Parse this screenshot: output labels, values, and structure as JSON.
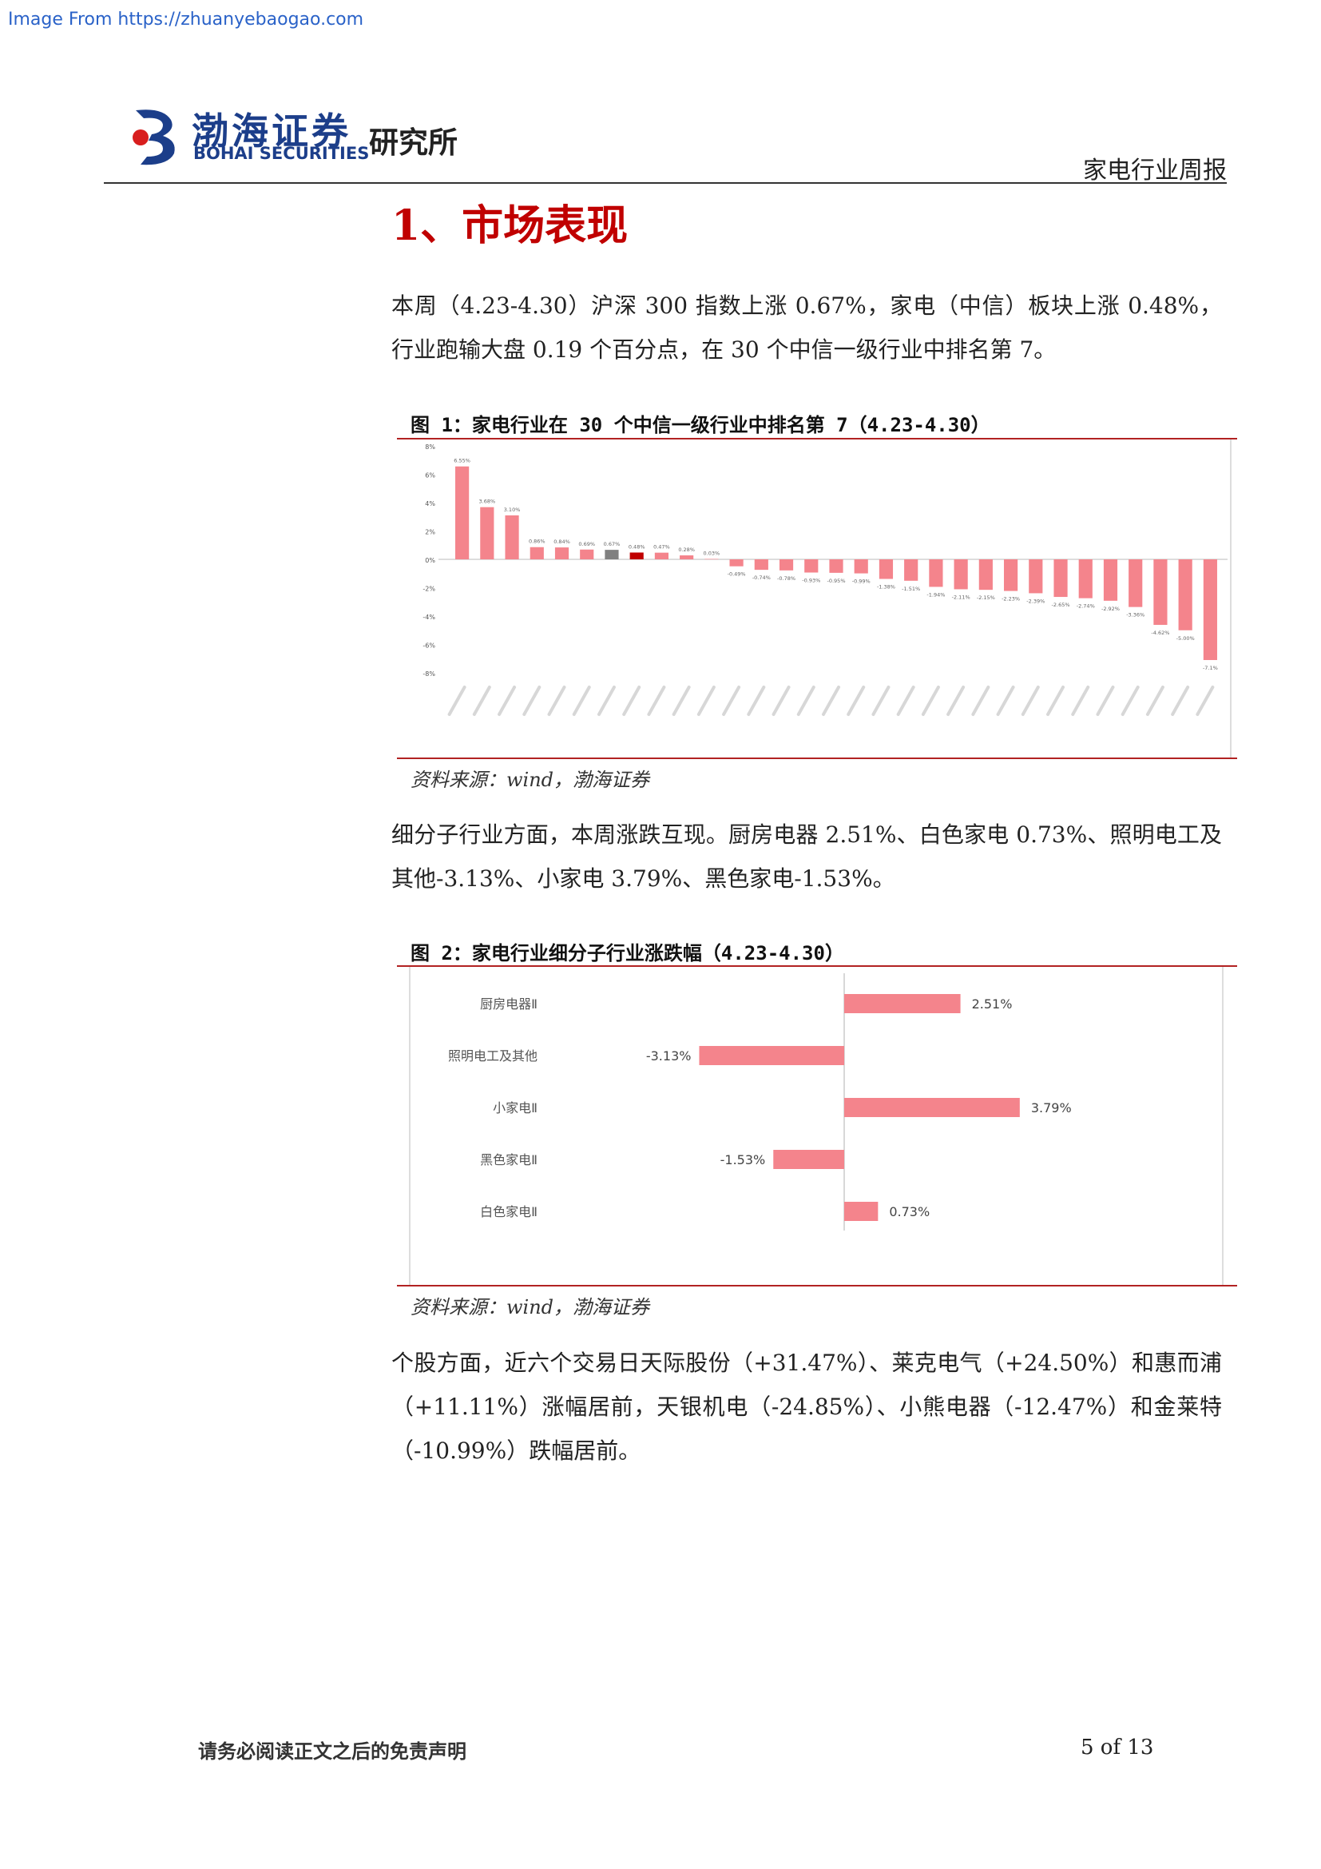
{
  "watermark": "Image From https://zhuanyebaogao.com",
  "header": {
    "logo_cn": "渤海证券",
    "logo_en": "BOHAI SECURITIES",
    "institute": "研究所",
    "report_type": "家电行业周报"
  },
  "section_title": "1、市场表现",
  "paragraphs": {
    "p1": "本周（4.23-4.30）沪深 300 指数上涨 0.67%，家电（中信）板块上涨 0.48%，行业跑输大盘 0.19 个百分点，在 30 个中信一级行业中排名第 7。",
    "p2": "细分子行业方面，本周涨跌互现。厨房电器 2.51%、白色家电 0.73%、照明电工及其他-3.13%、小家电 3.79%、黑色家电-1.53%。",
    "p3": "个股方面，近六个交易日天际股份（+31.47%）、莱克电气（+24.50%）和惠而浦（+11.11%）涨幅居前，天银机电（-24.85%）、小熊电器（-12.47%）和金莱特（-10.99%）跌幅居前。"
  },
  "figure1": {
    "title": "图 1：家电行业在 30 个中信一级行业中排名第 7（4.23-4.30）",
    "source": "资料来源：wind，渤海证券"
  },
  "figure2": {
    "title": "图 2：家电行业细分子行业涨跌幅（4.23-4.30）",
    "source": "资料来源：wind，渤海证券"
  },
  "footer": {
    "disclaimer": "请务必阅读正文之后的免责声明",
    "page": "5 of 13"
  },
  "colors": {
    "bar": "#f4848c",
    "highlight_home_appliance": "#c00000",
    "highlight_index": "#808080",
    "rule_red": "#b22222"
  },
  "chart_data": [
    {
      "type": "bar",
      "title": "",
      "ylim": [
        -8,
        8
      ],
      "yticks": [
        8,
        6,
        4,
        2,
        0,
        -2,
        -4,
        -6,
        -8
      ],
      "ytick_labels": [
        "8%",
        "6%",
        "4%",
        "2%",
        "0%",
        "-2%",
        "-4%",
        "-6%",
        "-8%"
      ],
      "values": [
        6.55,
        3.68,
        3.1,
        0.86,
        0.84,
        0.69,
        0.67,
        0.48,
        0.47,
        0.28,
        0.03,
        -0.49,
        -0.74,
        -0.78,
        -0.93,
        -0.95,
        -0.99,
        -1.38,
        -1.51,
        -1.94,
        -2.11,
        -2.15,
        -2.23,
        -2.39,
        -2.65,
        -2.74,
        -2.92,
        -3.36,
        -4.62,
        -5.0,
        -7.1
      ],
      "data_labels": [
        "6.55%",
        "3.68%",
        "3.10%",
        "0.86%",
        "0.84%",
        "0.69%",
        "0.67%",
        "0.48%",
        "0.47%",
        "0.28%",
        "0.03%",
        "-0.49%",
        "-0.74%",
        "-0.78%",
        "-0.93%",
        "-0.95%",
        "-0.99%",
        "-1.38%",
        "-1.51%",
        "-1.94%",
        "-2.11%",
        "-2.15%",
        "-2.23%",
        "-2.39%",
        "-2.65%",
        "-2.74%",
        "-2.92%",
        "-3.36%",
        "-4.62%",
        "-5.00%",
        "-7.1%"
      ],
      "highlight": {
        "index_bar": 6,
        "home_appliance_bar": 7
      },
      "legend": "none",
      "grid": false
    },
    {
      "type": "bar",
      "orientation": "horizontal",
      "categories": [
        "厨房电器Ⅱ",
        "照明电工及其他",
        "小家电Ⅱ",
        "黑色家电Ⅱ",
        "白色家电Ⅱ"
      ],
      "values": [
        2.51,
        -3.13,
        3.79,
        -1.53,
        0.73
      ],
      "data_labels": [
        "2.51%",
        "-3.13%",
        "3.79%",
        "-1.53%",
        "0.73%"
      ],
      "xlim": [
        -4.2,
        4.2
      ],
      "legend": "none",
      "grid": false
    }
  ]
}
